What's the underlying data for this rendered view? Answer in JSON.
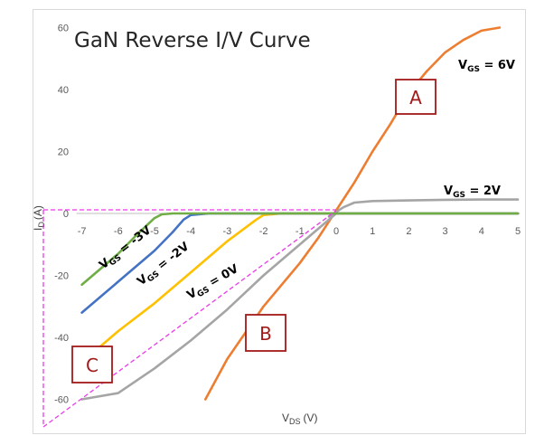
{
  "chart_data": {
    "type": "line",
    "title": "GaN Reverse I/V Curve",
    "xlabel": {
      "main": "V",
      "sub": "DS",
      "unit": "(V)"
    },
    "ylabel": {
      "main": "I",
      "sub": "D",
      "unit": "(A)"
    },
    "xlim": [
      -7,
      5
    ],
    "ylim": [
      -60,
      60
    ],
    "x_ticks": [
      "-7",
      "-6",
      "-5",
      "-4",
      "-3",
      "-2",
      "-1",
      "0",
      "1",
      "2",
      "3",
      "4",
      "5"
    ],
    "y_ticks": [
      "60",
      "40",
      "20",
      "0",
      "-20",
      "-40",
      "-60"
    ],
    "grid": false,
    "series": [
      {
        "name": "VGS = 6V",
        "color": "#ed7d31",
        "x": [
          -3.6,
          -3,
          -2,
          -1,
          -0.5,
          0,
          0.5,
          1,
          1.5,
          2,
          2.5,
          3,
          3.5,
          4,
          4.5
        ],
        "y": [
          -61,
          -47,
          -30,
          -16,
          -8,
          1,
          10,
          20,
          29,
          39,
          46,
          52,
          56,
          59,
          60
        ]
      },
      {
        "name": "VGS = 2V",
        "color": "#a5a5a5",
        "x": [
          -0.2,
          0,
          0.2,
          0.5,
          1,
          2,
          3,
          4,
          5
        ],
        "y": [
          -1,
          0.5,
          2,
          3.5,
          4,
          4.2,
          4.4,
          4.5,
          4.5
        ]
      },
      {
        "name": "VGS = 0V",
        "color": "#a5a5a5",
        "x": [
          -7,
          -6,
          -5,
          -4,
          -3,
          -2,
          -1,
          -0.5,
          0,
          1,
          2,
          3,
          4,
          5
        ],
        "y": [
          -61,
          -58,
          -50,
          -41,
          -31,
          -20,
          -10,
          -5,
          0,
          0,
          0,
          0,
          0,
          0
        ]
      },
      {
        "name": "VGS = 0V",
        "color": "#ffc000",
        "x": [
          -6.5,
          -6,
          -5,
          -4,
          -3,
          -2.2,
          -2,
          -1.5,
          0,
          5
        ],
        "y": [
          -43,
          -38,
          -29,
          -19,
          -9,
          -2,
          -0.5,
          0,
          0,
          0
        ]
      },
      {
        "name": "VGS = -2V",
        "color": "#4472c4",
        "x": [
          -7,
          -6,
          -5,
          -4.5,
          -4.2,
          -4,
          -3.5,
          0,
          5
        ],
        "y": [
          -32,
          -22,
          -12,
          -6,
          -2,
          -0.5,
          0,
          0,
          0
        ]
      },
      {
        "name": "VGS = -3V",
        "color": "#70ad47",
        "x": [
          -7,
          -6,
          -5.5,
          -5,
          -4.8,
          -4.5,
          0,
          5
        ],
        "y": [
          -23,
          -13,
          -7,
          -1.5,
          -0.3,
          0,
          0,
          0
        ]
      }
    ],
    "annotations": {
      "curve_labels": [
        {
          "main": "V",
          "sub": "GS",
          "rest": " = 6V"
        },
        {
          "main": "V",
          "sub": "GS",
          "rest": " = 2V"
        },
        {
          "main": "V",
          "sub": "GS",
          "rest": " = -3V"
        },
        {
          "main": "V",
          "sub": "GS",
          "rest": " = -2V"
        },
        {
          "main": "V",
          "sub": "GS",
          "rest": " = 0V"
        }
      ],
      "boxes": [
        "A",
        "B",
        "C"
      ],
      "dashed_guide_color": "#e83ce8",
      "box_border_color": "#a31a1a"
    }
  }
}
